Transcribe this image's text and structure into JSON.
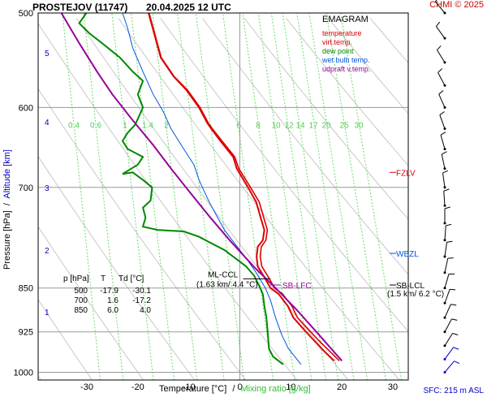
{
  "header": {
    "title": "PROSTEJOV (11747)",
    "datetime": "20.04.2025 12 UTC",
    "credit": "CHMI © 2025"
  },
  "legend": {
    "title": "EMAGRAM",
    "items": [
      {
        "label": "temperature",
        "color": "#dd0000"
      },
      {
        "label": "virt.temp.",
        "color": "#dd0000"
      },
      {
        "label": "dew point",
        "color": "#008800"
      },
      {
        "label": "wet bulb temp.",
        "color": "#0055dd"
      },
      {
        "label": "udpraft v.temp.",
        "color": "#990099"
      }
    ]
  },
  "chart_data": {
    "type": "line",
    "title": "EMAGRAM",
    "xlabel": "Temperature [°C]",
    "xlabel_sep": "/",
    "xlabel2": "Mixing ratio [g/kg]",
    "ylabel": "Pressure [hPa]",
    "ylabel_sep": "/",
    "ylabel2": "Altitude [km]",
    "x_ticks": [
      -30,
      -20,
      -10,
      0,
      10,
      20,
      30
    ],
    "xlim": [
      -38,
      32
    ],
    "y_ticks": [
      500,
      600,
      700,
      850,
      925,
      1000
    ],
    "ylim": [
      500,
      1015
    ],
    "y_scale": "log",
    "altitude_ticks": [
      {
        "km": "1",
        "p": 890
      },
      {
        "km": "2",
        "p": 790
      },
      {
        "km": "3",
        "p": 700
      },
      {
        "km": "4",
        "p": 617
      },
      {
        "km": "5",
        "p": 540
      }
    ],
    "mixing_ratio_labels": [
      "0.4",
      "0.6",
      "1",
      "1.4",
      "2",
      "6",
      "8",
      "10",
      "12",
      "14",
      "17",
      "20",
      "25",
      "30"
    ],
    "mixing_ratio_values": [
      0.4,
      0.6,
      1,
      1.4,
      2,
      3,
      4,
      6,
      8,
      10,
      12,
      14,
      17,
      20,
      25,
      30
    ],
    "series": [
      {
        "name": "temperature",
        "color": "#dd0000",
        "points": [
          [
            18.5,
            978
          ],
          [
            16.5,
            960
          ],
          [
            14.5,
            940
          ],
          [
            12.5,
            920
          ],
          [
            10.5,
            900
          ],
          [
            9.4,
            880
          ],
          [
            7.6,
            860
          ],
          [
            6.0,
            850
          ],
          [
            5.0,
            835
          ],
          [
            3.5,
            815
          ],
          [
            3.3,
            800
          ],
          [
            3.5,
            785
          ],
          [
            4.5,
            775
          ],
          [
            4.8,
            760
          ],
          [
            4.2,
            745
          ],
          [
            3.2,
            720
          ],
          [
            1.6,
            700
          ],
          [
            -0.6,
            675
          ],
          [
            -1.3,
            660
          ],
          [
            -3.8,
            640
          ],
          [
            -5.6,
            625
          ],
          [
            -6.4,
            618
          ],
          [
            -8.0,
            600
          ],
          [
            -10.5,
            580
          ],
          [
            -13.0,
            565
          ],
          [
            -15.5,
            545
          ],
          [
            -17.9,
            500
          ]
        ]
      },
      {
        "name": "virt.temp.",
        "color": "#dd0000",
        "points": [
          [
            19.5,
            978
          ],
          [
            17.6,
            960
          ],
          [
            15.4,
            940
          ],
          [
            13.4,
            920
          ],
          [
            11.3,
            900
          ],
          [
            10.2,
            880
          ],
          [
            8.4,
            860
          ],
          [
            6.8,
            850
          ],
          [
            5.8,
            835
          ],
          [
            4.3,
            815
          ],
          [
            4.0,
            800
          ],
          [
            4.2,
            785
          ],
          [
            5.1,
            775
          ],
          [
            5.4,
            760
          ],
          [
            4.8,
            745
          ],
          [
            3.8,
            720
          ],
          [
            2.1,
            700
          ],
          [
            -0.2,
            675
          ],
          [
            -1.0,
            660
          ],
          [
            -3.5,
            640
          ],
          [
            -5.4,
            625
          ],
          [
            -6.2,
            618
          ],
          [
            -7.8,
            600
          ],
          [
            -10.3,
            580
          ],
          [
            -12.9,
            565
          ],
          [
            -15.4,
            545
          ],
          [
            -17.8,
            500
          ]
        ]
      },
      {
        "name": "dew point",
        "color": "#008800",
        "points": [
          [
            8.5,
            985
          ],
          [
            6.5,
            970
          ],
          [
            5.7,
            955
          ],
          [
            5.5,
            930
          ],
          [
            5.2,
            900
          ],
          [
            4.8,
            880
          ],
          [
            4.5,
            860
          ],
          [
            4.0,
            850
          ],
          [
            2.8,
            830
          ],
          [
            1.2,
            815
          ],
          [
            -3.0,
            790
          ],
          [
            -8.0,
            770
          ],
          [
            -11.0,
            762
          ],
          [
            -16.0,
            760
          ],
          [
            -19.0,
            755
          ],
          [
            -18.5,
            742
          ],
          [
            -19.0,
            728
          ],
          [
            -17.5,
            718
          ],
          [
            -17.2,
            700
          ],
          [
            -19.0,
            690
          ],
          [
            -21.0,
            680
          ],
          [
            -23.0,
            682
          ],
          [
            -20.0,
            670
          ],
          [
            -19.0,
            660
          ],
          [
            -22.0,
            650
          ],
          [
            -23.0,
            640
          ],
          [
            -22.0,
            630
          ],
          [
            -20.5,
            620
          ],
          [
            -19.0,
            600
          ],
          [
            -20.0,
            585
          ],
          [
            -19.0,
            570
          ],
          [
            -21.0,
            560
          ],
          [
            -23.5,
            545
          ],
          [
            -27.0,
            530
          ],
          [
            -29.5,
            520
          ],
          [
            -31.5,
            510
          ],
          [
            -30.1,
            500
          ]
        ]
      },
      {
        "name": "wet bulb temp.",
        "color": "#0055dd",
        "points": [
          [
            12.0,
            985
          ],
          [
            9.5,
            955
          ],
          [
            8.2,
            930
          ],
          [
            7.0,
            900
          ],
          [
            6.0,
            870
          ],
          [
            5.0,
            850
          ],
          [
            3.2,
            825
          ],
          [
            1.0,
            800
          ],
          [
            -1.0,
            780
          ],
          [
            -3.0,
            760
          ],
          [
            -4.5,
            740
          ],
          [
            -6.0,
            720
          ],
          [
            -7.0,
            705
          ],
          [
            -8.0,
            690
          ],
          [
            -9.0,
            670
          ],
          [
            -11.0,
            650
          ],
          [
            -13.5,
            625
          ],
          [
            -15.0,
            605
          ],
          [
            -17.0,
            585
          ],
          [
            -19.0,
            560
          ],
          [
            -21.0,
            535
          ],
          [
            -22.0,
            515
          ],
          [
            -23.0,
            500
          ]
        ]
      },
      {
        "name": "udpraft v.temp.",
        "color": "#990099",
        "points": [
          [
            20.0,
            978
          ],
          [
            15.0,
            925
          ],
          [
            11.0,
            885
          ],
          [
            7.0,
            850
          ],
          [
            3.0,
            818
          ],
          [
            -2.0,
            775
          ],
          [
            -6.0,
            740
          ],
          [
            -10.0,
            705
          ],
          [
            -13.5,
            675
          ],
          [
            -17.0,
            645
          ],
          [
            -21.0,
            615
          ],
          [
            -25.0,
            585
          ],
          [
            -28.0,
            560
          ],
          [
            -31.5,
            530
          ],
          [
            -35.0,
            500
          ]
        ]
      }
    ],
    "annotations": [
      {
        "label": "FZLV",
        "p": 680,
        "color": "#dd0000"
      },
      {
        "label": "WBZL",
        "p": 795,
        "color": "#0055dd"
      },
      {
        "label": "SB-LCL",
        "p": 845,
        "color": "#000000"
      },
      {
        "label": "(1.5 km/ 6.2 °C)",
        "color": "#000000"
      },
      {
        "label": "ML-CCL",
        "color": "#000000"
      },
      {
        "label": "(1.63 km/ 4.4 °C)",
        "color": "#000000"
      },
      {
        "label": "SB-LFC",
        "color": "#990099"
      }
    ],
    "table": {
      "headers": [
        "p [hPa]",
        "T",
        "Td [°C]"
      ],
      "rows": [
        [
          "500",
          "-17.9",
          "-30.1"
        ],
        [
          "700",
          "1.6",
          "-17.2"
        ],
        [
          "850",
          "6.0",
          "4.0"
        ]
      ]
    },
    "wind_levels_hpa": [
      1000,
      975,
      950,
      925,
      900,
      875,
      850,
      825,
      800,
      775,
      750,
      725,
      700,
      675,
      650,
      625,
      600,
      575,
      550,
      525,
      500
    ]
  },
  "footer": {
    "sfc": "SFC: 215 m ASL"
  }
}
